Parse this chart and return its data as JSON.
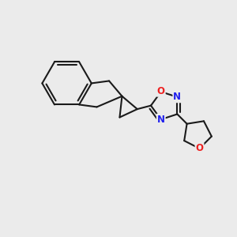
{
  "background_color": "#ebebeb",
  "bond_color": "#1a1a1a",
  "nitrogen_color": "#2020ee",
  "oxygen_color": "#ee2020",
  "line_width": 1.5,
  "figsize": [
    3.0,
    3.0
  ],
  "dpi": 100,
  "xlim": [
    0,
    10
  ],
  "ylim": [
    0,
    10
  ]
}
